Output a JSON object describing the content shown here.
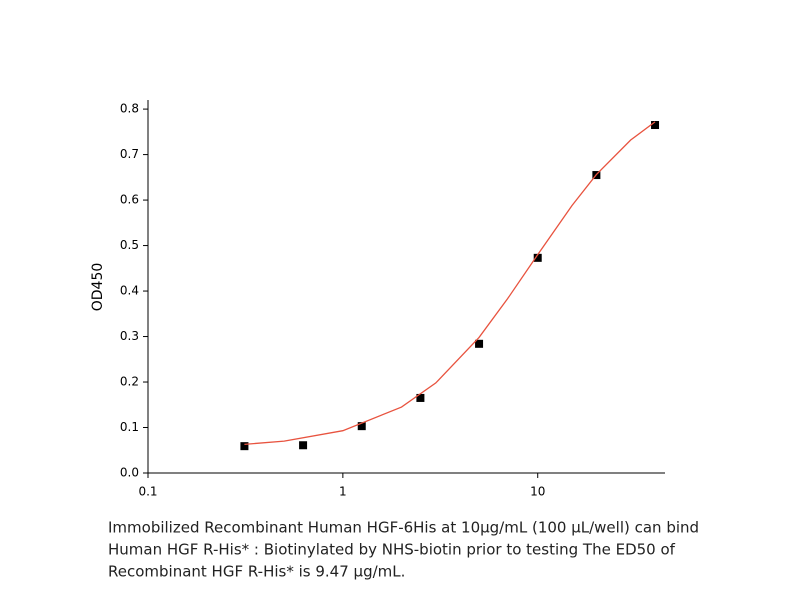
{
  "chart_data": {
    "type": "scatter",
    "ylabel": "OD450",
    "xscale": "log",
    "xlim": [
      0.1,
      45
    ],
    "xticks": [
      0.1,
      1,
      10
    ],
    "ylim": [
      0,
      0.82
    ],
    "yticks": [
      {
        "value": 0,
        "label": "0.0"
      },
      0.1,
      0.2,
      0.3,
      0.4,
      0.5,
      0.6,
      0.7,
      0.8
    ],
    "series": [
      {
        "kind": "points",
        "color": "#000000",
        "x": [
          0.3125,
          0.625,
          1.25,
          2.5,
          5,
          10,
          20,
          40
        ],
        "values": [
          0.059,
          0.061,
          0.103,
          0.165,
          0.284,
          0.473,
          0.655,
          0.765
        ]
      },
      {
        "kind": "curve",
        "color": "#e8533f",
        "x": [
          0.3125,
          0.5,
          1,
          2,
          3,
          5,
          7,
          10,
          15,
          20,
          30,
          40
        ],
        "values": [
          0.063,
          0.07,
          0.093,
          0.145,
          0.198,
          0.298,
          0.383,
          0.48,
          0.588,
          0.656,
          0.732,
          0.772
        ]
      }
    ],
    "caption": [
      "Immobilized Recombinant Human HGF-6His at 10μg/mL (100 μL/well) can bind",
      "Human HGF R-His* : Biotinylated by NHS-biotin prior to testing The ED50 of",
      "Recombinant HGF R-His* is 9.47 μg/mL."
    ]
  }
}
